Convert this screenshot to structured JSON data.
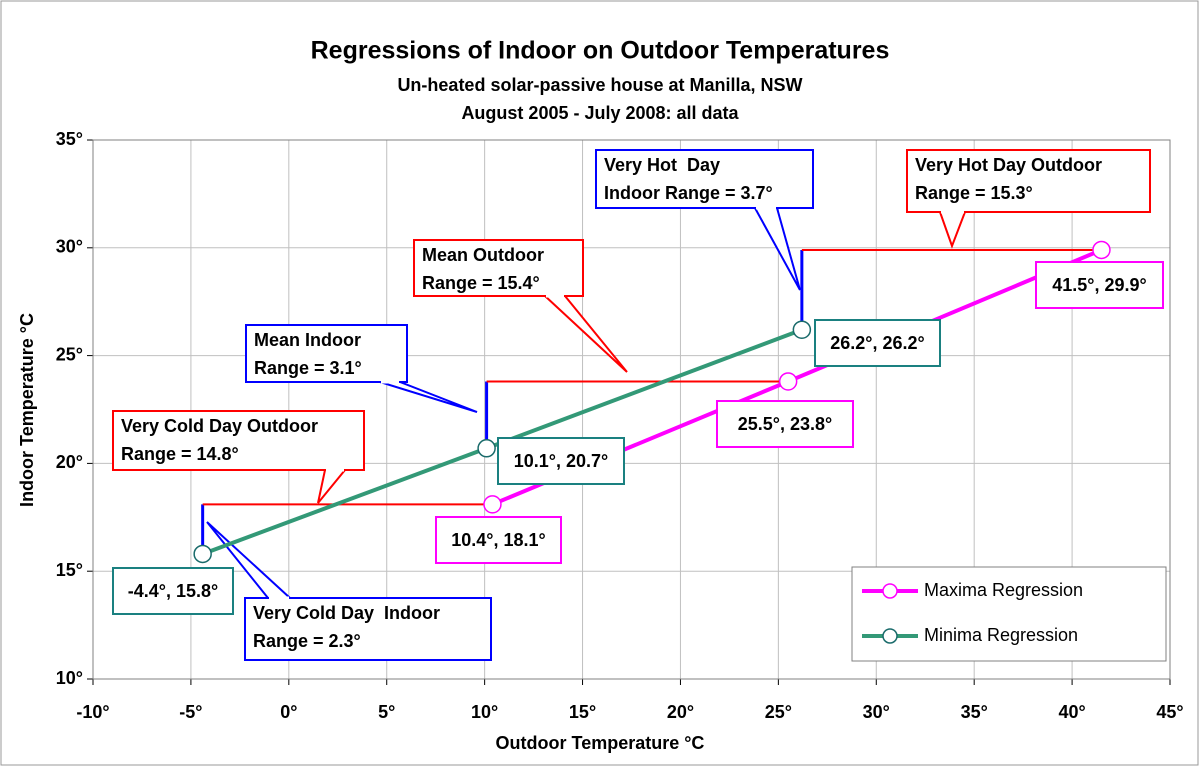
{
  "chart_data": {
    "type": "scatter",
    "title": "Regressions of Indoor on Outdoor Temperatures",
    "subtitle": [
      "Un-heated solar-passive house at Manilla, NSW",
      "August 2005 - July 2008: all data"
    ],
    "x_label": "Outdoor Temperature °C",
    "y_label": "Indoor Temperature °C",
    "xlim": [
      -10,
      45
    ],
    "ylim": [
      10,
      35
    ],
    "xticks": [
      {
        "value": -10,
        "label": "-10°"
      },
      {
        "value": -5,
        "label": "-5°"
      },
      {
        "value": 0,
        "label": "0°"
      },
      {
        "value": 5,
        "label": "5°"
      },
      {
        "value": 10,
        "label": "10°"
      },
      {
        "value": 15,
        "label": "15°"
      },
      {
        "value": 20,
        "label": "20°"
      },
      {
        "value": 25,
        "label": "25°"
      },
      {
        "value": 30,
        "label": "30°"
      },
      {
        "value": 35,
        "label": "35°"
      },
      {
        "value": 40,
        "label": "40°"
      },
      {
        "value": 45,
        "label": "45°"
      }
    ],
    "yticks": [
      {
        "value": 10,
        "label": "10°"
      },
      {
        "value": 15,
        "label": "15°"
      },
      {
        "value": 20,
        "label": "20°"
      },
      {
        "value": 25,
        "label": "25°"
      },
      {
        "value": 30,
        "label": "30°"
      },
      {
        "value": 35,
        "label": "35°"
      }
    ],
    "grid": true,
    "legend": "bottom-right",
    "series": [
      {
        "name": "Maxima Regression",
        "color": "#ff00ff",
        "x": [
          10.4,
          25.5,
          41.5
        ],
        "values": [
          18.1,
          23.8,
          29.9
        ],
        "value_labels": [
          "10.4°, 18.1°",
          "25.5°, 23.8°",
          "41.5°, 29.9°"
        ]
      },
      {
        "name": "Minima Regression",
        "color": "#339977",
        "x": [
          -4.4,
          10.1,
          26.2
        ],
        "values": [
          15.8,
          20.7,
          26.2
        ],
        "value_labels": [
          "-4.4°, 15.8°",
          "10.1°, 20.7°",
          "26.2°, 26.2°"
        ]
      }
    ],
    "annotations": [
      {
        "color": "#0000ff",
        "lines": [
          "Very Cold Day  Indoor",
          "Range = 2.3°"
        ]
      },
      {
        "color": "#ff0000",
        "lines": [
          "Very Cold Day Outdoor",
          "Range = 14.8°"
        ]
      },
      {
        "color": "#0000ff",
        "lines": [
          "Mean Indoor",
          "Range = 3.1°"
        ]
      },
      {
        "color": "#ff0000",
        "lines": [
          "Mean Outdoor",
          "Range = 15.4°"
        ]
      },
      {
        "color": "#0000ff",
        "lines": [
          "Very Hot  Day",
          "Indoor Range = 3.7°"
        ]
      },
      {
        "color": "#ff0000",
        "lines": [
          "Very Hot Day Outdoor",
          "Range = 15.3°"
        ]
      }
    ]
  }
}
